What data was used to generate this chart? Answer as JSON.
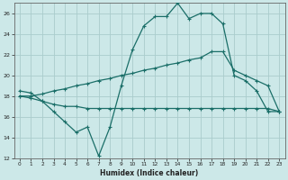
{
  "xlabel": "Humidex (Indice chaleur)",
  "bg_color": "#cce8e8",
  "grid_color": "#aacccc",
  "line_color": "#1a6e68",
  "xlim": [
    -0.5,
    23.5
  ],
  "ylim": [
    12,
    27
  ],
  "xticks": [
    0,
    1,
    2,
    3,
    4,
    5,
    6,
    7,
    8,
    9,
    10,
    11,
    12,
    13,
    14,
    15,
    16,
    17,
    18,
    19,
    20,
    21,
    22,
    23
  ],
  "yticks": [
    12,
    14,
    16,
    18,
    20,
    22,
    24,
    26
  ],
  "curve1_x": [
    0,
    1,
    2,
    3,
    4,
    5,
    6,
    7,
    8,
    9,
    10,
    11,
    12,
    13,
    14,
    15,
    16,
    17,
    18,
    19,
    20,
    21,
    22,
    23
  ],
  "curve1_y": [
    18.5,
    18.3,
    17.5,
    16.5,
    15.5,
    14.5,
    15.0,
    12.2,
    15.0,
    19.0,
    22.5,
    24.8,
    25.7,
    25.7,
    27.0,
    25.5,
    26.0,
    26.0,
    25.0,
    20.0,
    19.5,
    18.5,
    16.5,
    16.5
  ],
  "curve2_x": [
    0,
    1,
    2,
    3,
    4,
    5,
    6,
    7,
    8,
    9,
    10,
    11,
    12,
    13,
    14,
    15,
    16,
    17,
    18,
    19,
    20,
    21,
    22,
    23
  ],
  "curve2_y": [
    18.0,
    18.0,
    18.2,
    18.5,
    18.7,
    19.0,
    19.2,
    19.5,
    19.7,
    20.0,
    20.2,
    20.5,
    20.7,
    21.0,
    21.2,
    21.5,
    21.7,
    22.3,
    22.3,
    20.5,
    20.0,
    19.5,
    19.0,
    16.5
  ],
  "curve3_x": [
    0,
    1,
    2,
    3,
    4,
    5,
    6,
    7,
    8,
    9,
    10,
    11,
    12,
    13,
    14,
    15,
    16,
    17,
    18,
    19,
    20,
    21,
    22,
    23
  ],
  "curve3_y": [
    18.0,
    17.8,
    17.5,
    17.2,
    17.0,
    17.0,
    16.8,
    16.8,
    16.8,
    16.8,
    16.8,
    16.8,
    16.8,
    16.8,
    16.8,
    16.8,
    16.8,
    16.8,
    16.8,
    16.8,
    16.8,
    16.8,
    16.8,
    16.5
  ]
}
